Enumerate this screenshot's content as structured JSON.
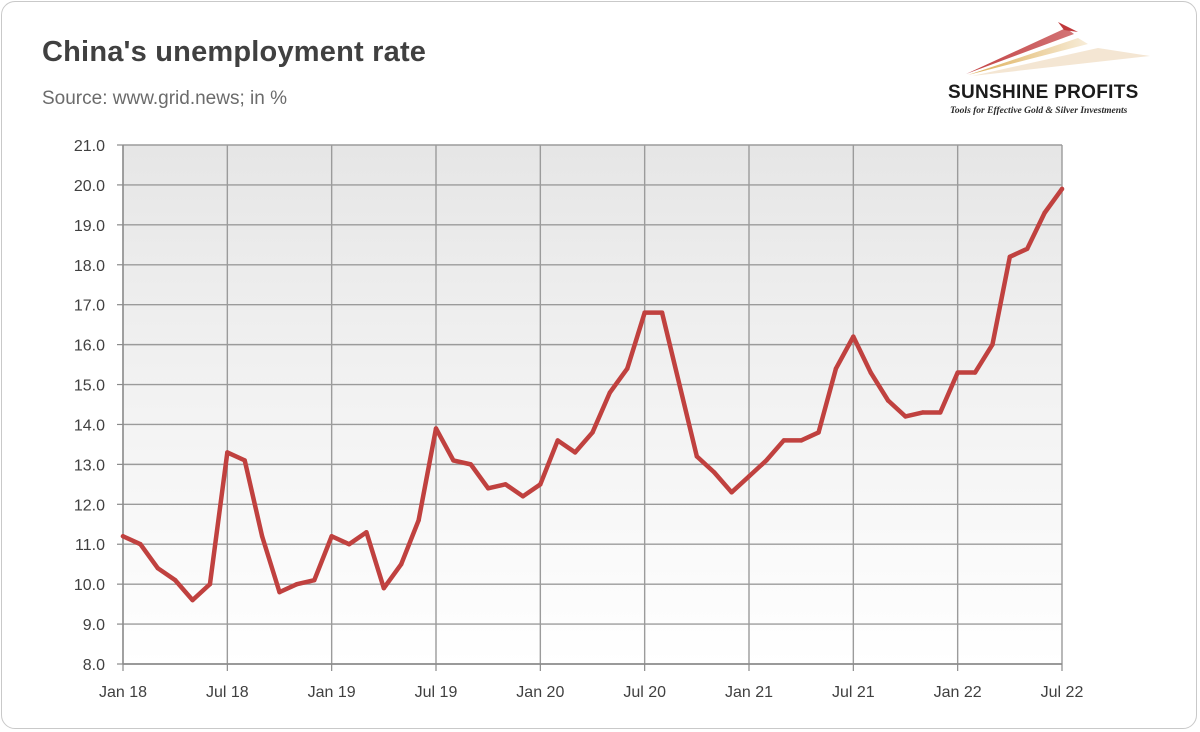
{
  "title": "China's unemployment rate",
  "subtitle": "Source: www.grid.news; in %",
  "logo": {
    "name": "SUNSHINE PROFITS",
    "tagline": "Tools for Effective Gold & Silver Investments",
    "icon": "sunrise-rays-logo-icon",
    "colors": [
      "#c0393b",
      "#d9a441",
      "#e8c9a0"
    ]
  },
  "colors": {
    "line": "#c0413f",
    "plot_background_top": "#e6e6e6",
    "plot_background_bottom": "#ffffff",
    "grid": "#9b9b9b"
  },
  "chart_data": {
    "type": "line",
    "title": "China's unemployment rate",
    "subtitle": "Source: www.grid.news; in %",
    "xlabel": "",
    "ylabel": "",
    "ylim": [
      8,
      21
    ],
    "yticks": [
      "8.0",
      "9.0",
      "10.0",
      "11.0",
      "12.0",
      "13.0",
      "14.0",
      "15.0",
      "16.0",
      "17.0",
      "18.0",
      "19.0",
      "20.0",
      "21.0"
    ],
    "xticks": [
      {
        "label": "Jan 18",
        "index": 0
      },
      {
        "label": "Jul 18",
        "index": 6
      },
      {
        "label": "Jan 19",
        "index": 12
      },
      {
        "label": "Jul 19",
        "index": 18
      },
      {
        "label": "Jan 20",
        "index": 24
      },
      {
        "label": "Jul 20",
        "index": 30
      },
      {
        "label": "Jan 21",
        "index": 36
      },
      {
        "label": "Jul 21",
        "index": 42
      },
      {
        "label": "Jan 22",
        "index": 48
      },
      {
        "label": "Jul 22",
        "index": 54
      }
    ],
    "grid": true,
    "legend": "none",
    "x_start": "Jan 18",
    "x_end": "Jul 22",
    "series": [
      {
        "values": [
          11.2,
          11.0,
          10.4,
          10.1,
          9.6,
          10.0,
          13.3,
          13.1,
          11.2,
          9.8,
          10.0,
          10.1,
          11.2,
          11.0,
          11.3,
          9.9,
          10.5,
          11.6,
          13.9,
          13.1,
          13.0,
          12.4,
          12.5,
          12.2,
          12.5,
          13.6,
          13.3,
          13.8,
          14.8,
          15.4,
          16.8,
          16.8,
          15.0,
          13.2,
          12.8,
          12.3,
          12.7,
          13.1,
          13.6,
          13.6,
          13.8,
          15.4,
          16.2,
          15.3,
          14.6,
          14.2,
          14.3,
          14.3,
          15.3,
          15.3,
          16.0,
          18.2,
          18.4,
          19.3,
          19.9
        ]
      }
    ]
  }
}
